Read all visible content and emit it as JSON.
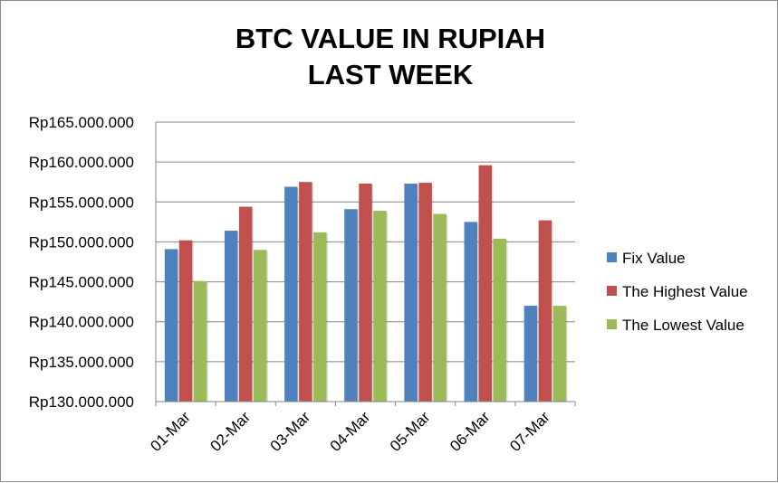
{
  "chart_data": {
    "type": "bar",
    "title": [
      "BTC VALUE IN RUPIAH",
      "LAST WEEK"
    ],
    "categories": [
      "01-Mar",
      "02-Mar",
      "03-Mar",
      "04-Mar",
      "05-Mar",
      "06-Mar",
      "07-Mar"
    ],
    "series": [
      {
        "name": "Fix Value",
        "color": "#4f81bd",
        "values": [
          149100000,
          151400000,
          156900000,
          154100000,
          157300000,
          152500000,
          142000000
        ]
      },
      {
        "name": "The Highest Value",
        "color": "#c0504d",
        "values": [
          150200000,
          154400000,
          157500000,
          157300000,
          157400000,
          159600000,
          152700000
        ]
      },
      {
        "name": "The Lowest Value",
        "color": "#9bbb59",
        "values": [
          145100000,
          149000000,
          151200000,
          153900000,
          153500000,
          150400000,
          142000000
        ]
      }
    ],
    "ylim": [
      130000000,
      165000000
    ],
    "yticks": [
      {
        "value": 130000000,
        "label": "Rp130.000.000"
      },
      {
        "value": 135000000,
        "label": "Rp135.000.000"
      },
      {
        "value": 140000000,
        "label": "Rp140.000.000"
      },
      {
        "value": 145000000,
        "label": "Rp145.000.000"
      },
      {
        "value": 150000000,
        "label": "Rp150.000.000"
      },
      {
        "value": 155000000,
        "label": "Rp155.000.000"
      },
      {
        "value": 160000000,
        "label": "Rp160.000.000"
      },
      {
        "value": 165000000,
        "label": "Rp165.000.000"
      }
    ],
    "grid": true,
    "legend_position": "right"
  }
}
